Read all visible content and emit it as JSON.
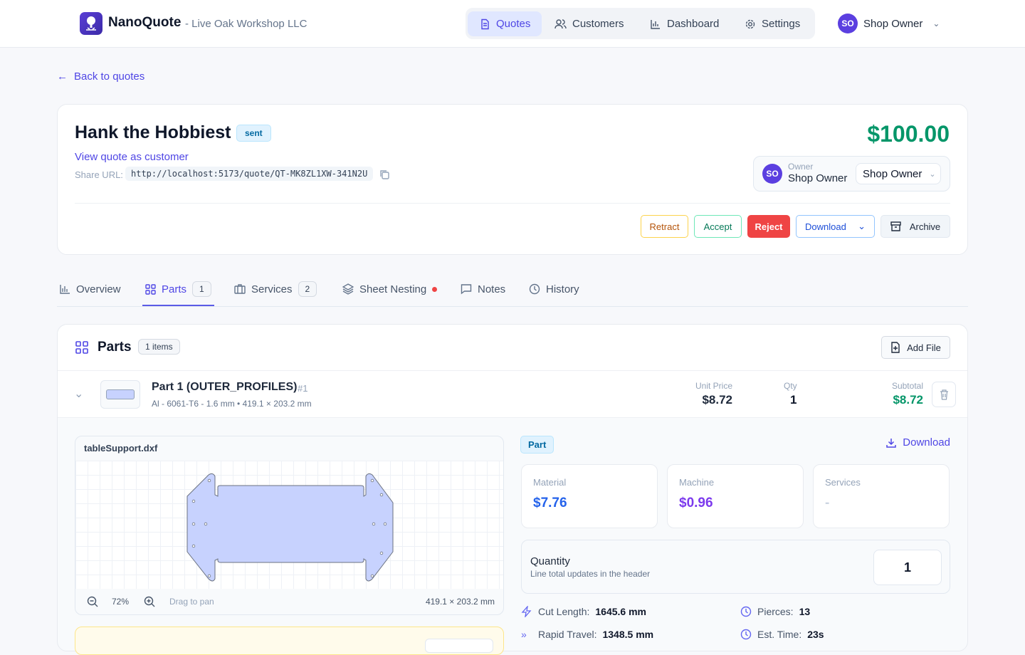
{
  "header": {
    "brand": "NanoQuote",
    "org": "- Live Oak Workshop LLC",
    "nav": [
      {
        "label": "Quotes",
        "icon": "file-icon"
      },
      {
        "label": "Customers",
        "icon": "users-icon"
      },
      {
        "label": "Dashboard",
        "icon": "bar-chart-icon"
      },
      {
        "label": "Settings",
        "icon": "gear-icon"
      }
    ],
    "user": {
      "initials": "SO",
      "name": "Shop Owner"
    }
  },
  "back_label": "Back to quotes",
  "quote": {
    "customer": "Hank the Hobbiest",
    "status": "sent",
    "view_link": "View quote as customer",
    "share_label": "Share URL:",
    "share_url": "http://localhost:5173/quote/QT-MK8ZL1XW-341N2U",
    "total": "$100.00",
    "owner_label": "Owner",
    "owner_initials": "SO",
    "owner_name": "Shop Owner",
    "owner_select": "Shop Owner",
    "actions": {
      "retract": "Retract",
      "accept": "Accept",
      "reject": "Reject",
      "download": "Download",
      "archive": "Archive"
    }
  },
  "tabs": [
    {
      "label": "Overview"
    },
    {
      "label": "Parts",
      "count": "1"
    },
    {
      "label": "Services",
      "count": "2"
    },
    {
      "label": "Sheet Nesting"
    },
    {
      "label": "Notes"
    },
    {
      "label": "History"
    }
  ],
  "parts": {
    "title": "Parts",
    "count": "1 items",
    "add_file": "Add File",
    "item": {
      "name": "Part 1 (OUTER_PROFILES)",
      "index": "#1",
      "spec": "Al - 6061-T6 - 1.6 mm • 419.1 × 203.2 mm",
      "unit_price_label": "Unit Price",
      "unit_price": "$8.72",
      "qty_label": "Qty",
      "qty": "1",
      "subtotal_label": "Subtotal",
      "subtotal": "$8.72"
    },
    "viewer": {
      "filename": "tableSupport.dxf",
      "zoom": "72%",
      "hint": "Drag to pan",
      "dims": "419.1 × 203.2 mm"
    },
    "detail": {
      "badge": "Part",
      "download": "Download",
      "material_label": "Material",
      "material": "$7.76",
      "machine_label": "Machine",
      "machine": "$0.96",
      "services_label": "Services",
      "services": "-",
      "quantity_title": "Quantity",
      "quantity_hint": "Line total updates in the header",
      "quantity": "1",
      "metrics": [
        {
          "label": "Cut Length:",
          "value": "1645.6 mm"
        },
        {
          "label": "Pierces:",
          "value": "13"
        },
        {
          "label": "Rapid Travel:",
          "value": "1348.5 mm"
        },
        {
          "label": "Est. Time:",
          "value": "23s"
        }
      ]
    }
  },
  "colors": {
    "accent": "#4f46e5",
    "green": "#059669",
    "reject": "#ef4444"
  }
}
